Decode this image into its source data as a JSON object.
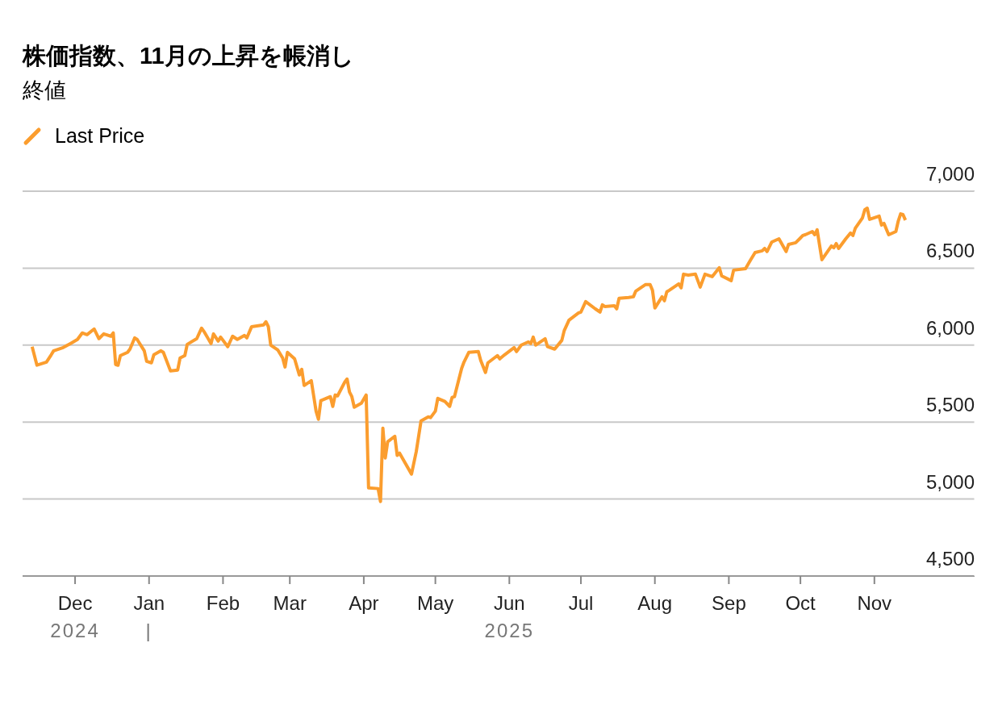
{
  "chart_data": {
    "type": "line",
    "title": "株価指数、11月の上昇を帳消し",
    "subtitle": "終値",
    "legend": "top left",
    "grid": "y",
    "xlim": [
      "2024-11-09",
      "2025-12-13"
    ],
    "xticks": [
      {
        "value": "2024-12-01",
        "label": "Dec\n2024"
      },
      {
        "value": "2025-01-01",
        "label": "Jan\n|"
      },
      {
        "value": "2025-02-01",
        "label": "Feb"
      },
      {
        "value": "2025-03-01",
        "label": "Mar"
      },
      {
        "value": "2025-04-01",
        "label": "Apr"
      },
      {
        "value": "2025-05-01",
        "label": "May"
      },
      {
        "value": "2025-06-01",
        "label": "Jun\n2025"
      },
      {
        "value": "2025-07-01",
        "label": "Jul"
      },
      {
        "value": "2025-08-01",
        "label": "Aug"
      },
      {
        "value": "2025-09-01",
        "label": "Sep"
      },
      {
        "value": "2025-10-01",
        "label": "Oct"
      },
      {
        "value": "2025-11-01",
        "label": "Nov"
      }
    ],
    "ylim": [
      4500,
      7000
    ],
    "yticks": [
      {
        "value": 4500,
        "label": "4,500"
      },
      {
        "value": 5000,
        "label": "5,000"
      },
      {
        "value": 5500,
        "label": "5,500"
      },
      {
        "value": 6000,
        "label": "6,000"
      },
      {
        "value": 6500,
        "label": "6,500"
      },
      {
        "value": 7000,
        "label": "7,000"
      }
    ],
    "x": [
      "2024-11-13",
      "2024-11-15",
      "2024-11-19",
      "2024-11-21",
      "2024-11-22",
      "2024-11-26",
      "2024-11-29",
      "2024-12-02",
      "2024-12-04",
      "2024-12-06",
      "2024-12-09",
      "2024-12-11",
      "2024-12-13",
      "2024-12-16",
      "2024-12-17",
      "2024-12-18",
      "2024-12-19",
      "2024-12-20",
      "2024-12-23",
      "2024-12-24",
      "2024-12-26",
      "2024-12-27",
      "2024-12-30",
      "2024-12-31",
      "2025-01-02",
      "2025-01-03",
      "2025-01-06",
      "2025-01-07",
      "2025-01-10",
      "2025-01-13",
      "2025-01-14",
      "2025-01-16",
      "2025-01-17",
      "2025-01-21",
      "2025-01-23",
      "2025-01-24",
      "2025-01-27",
      "2025-01-28",
      "2025-01-30",
      "2025-01-31",
      "2025-02-03",
      "2025-02-05",
      "2025-02-07",
      "2025-02-10",
      "2025-02-11",
      "2025-02-13",
      "2025-02-18",
      "2025-02-19",
      "2025-02-20",
      "2025-02-21",
      "2025-02-24",
      "2025-02-26",
      "2025-02-27",
      "2025-02-28",
      "2025-03-03",
      "2025-03-04",
      "2025-03-05",
      "2025-03-06",
      "2025-03-07",
      "2025-03-10",
      "2025-03-11",
      "2025-03-12",
      "2025-03-13",
      "2025-03-14",
      "2025-03-18",
      "2025-03-19",
      "2025-03-20",
      "2025-03-21",
      "2025-03-24",
      "2025-03-25",
      "2025-03-26",
      "2025-03-27",
      "2025-03-28",
      "2025-03-31",
      "2025-04-02",
      "2025-04-03",
      "2025-04-07",
      "2025-04-08",
      "2025-04-09",
      "2025-04-10",
      "2025-04-11",
      "2025-04-14",
      "2025-04-15",
      "2025-04-16",
      "2025-04-21",
      "2025-04-23",
      "2025-04-25",
      "2025-04-28",
      "2025-04-29",
      "2025-04-30",
      "2025-05-01",
      "2025-05-02",
      "2025-05-05",
      "2025-05-07",
      "2025-05-08",
      "2025-05-09",
      "2025-05-12",
      "2025-05-13",
      "2025-05-15",
      "2025-05-19",
      "2025-05-20",
      "2025-05-22",
      "2025-05-23",
      "2025-05-27",
      "2025-05-28",
      "2025-05-30",
      "2025-06-03",
      "2025-06-04",
      "2025-06-06",
      "2025-06-09",
      "2025-06-10",
      "2025-06-11",
      "2025-06-12",
      "2025-06-16",
      "2025-06-17",
      "2025-06-20",
      "2025-06-23",
      "2025-06-24",
      "2025-06-26",
      "2025-06-30",
      "2025-07-01",
      "2025-07-03",
      "2025-07-07",
      "2025-07-09",
      "2025-07-10",
      "2025-07-11",
      "2025-07-15",
      "2025-07-16",
      "2025-07-17",
      "2025-07-21",
      "2025-07-23",
      "2025-07-24",
      "2025-07-28",
      "2025-07-30",
      "2025-07-31",
      "2025-08-01",
      "2025-08-04",
      "2025-08-05",
      "2025-08-06",
      "2025-08-07",
      "2025-08-11",
      "2025-08-12",
      "2025-08-13",
      "2025-08-15",
      "2025-08-18",
      "2025-08-19",
      "2025-08-20",
      "2025-08-22",
      "2025-08-25",
      "2025-08-28",
      "2025-08-29",
      "2025-09-02",
      "2025-09-03",
      "2025-09-08",
      "2025-09-10",
      "2025-09-12",
      "2025-09-15",
      "2025-09-16",
      "2025-09-17",
      "2025-09-19",
      "2025-09-22",
      "2025-09-25",
      "2025-09-26",
      "2025-09-29",
      "2025-10-01",
      "2025-10-02",
      "2025-10-03",
      "2025-10-06",
      "2025-10-07",
      "2025-10-08",
      "2025-10-10",
      "2025-10-14",
      "2025-10-15",
      "2025-10-16",
      "2025-10-17",
      "2025-10-20",
      "2025-10-22",
      "2025-10-23",
      "2025-10-24",
      "2025-10-27",
      "2025-10-28",
      "2025-10-29",
      "2025-10-30",
      "2025-11-03",
      "2025-11-04",
      "2025-11-05",
      "2025-11-07",
      "2025-11-10",
      "2025-11-11",
      "2025-11-12",
      "2025-11-13",
      "2025-11-14"
    ],
    "series": [
      {
        "name": "Last Price",
        "color": "#fb9d2e",
        "values": [
          5990,
          5870,
          5890,
          5937,
          5963,
          5984,
          6010,
          6037,
          6079,
          6068,
          6105,
          6042,
          6073,
          6058,
          6079,
          5874,
          5869,
          5932,
          5953,
          5974,
          6047,
          6037,
          5963,
          5895,
          5885,
          5937,
          5963,
          5953,
          5832,
          5838,
          5916,
          5932,
          6005,
          6042,
          6110,
          6089,
          6010,
          6073,
          6026,
          6052,
          5990,
          6058,
          6037,
          6063,
          6047,
          6120,
          6131,
          6152,
          6120,
          6000,
          5968,
          5916,
          5858,
          5953,
          5911,
          5858,
          5806,
          5843,
          5738,
          5769,
          5670,
          5571,
          5518,
          5639,
          5665,
          5602,
          5676,
          5670,
          5759,
          5780,
          5696,
          5665,
          5597,
          5623,
          5676,
          5073,
          5068,
          4984,
          5461,
          5267,
          5372,
          5408,
          5283,
          5298,
          5162,
          5309,
          5508,
          5534,
          5529,
          5550,
          5571,
          5654,
          5634,
          5602,
          5660,
          5665,
          5848,
          5890,
          5953,
          5958,
          5901,
          5822,
          5885,
          5932,
          5911,
          5937,
          5984,
          5958,
          6000,
          6021,
          6010,
          6052,
          6000,
          6042,
          5990,
          5974,
          6031,
          6094,
          6162,
          6209,
          6215,
          6283,
          6236,
          6215,
          6262,
          6251,
          6256,
          6236,
          6304,
          6309,
          6314,
          6351,
          6393,
          6393,
          6356,
          6241,
          6314,
          6288,
          6346,
          6356,
          6398,
          6372,
          6461,
          6455,
          6461,
          6419,
          6377,
          6461,
          6445,
          6503,
          6450,
          6419,
          6487,
          6497,
          6550,
          6602,
          6613,
          6628,
          6608,
          6670,
          6691,
          6608,
          6654,
          6665,
          6696,
          6712,
          6717,
          6738,
          6717,
          6749,
          6555,
          6644,
          6633,
          6660,
          6628,
          6691,
          6728,
          6712,
          6759,
          6827,
          6880,
          6890,
          6817,
          6838,
          6780,
          6791,
          6717,
          6738,
          6806,
          6853,
          6848,
          6812
        ]
      }
    ]
  }
}
